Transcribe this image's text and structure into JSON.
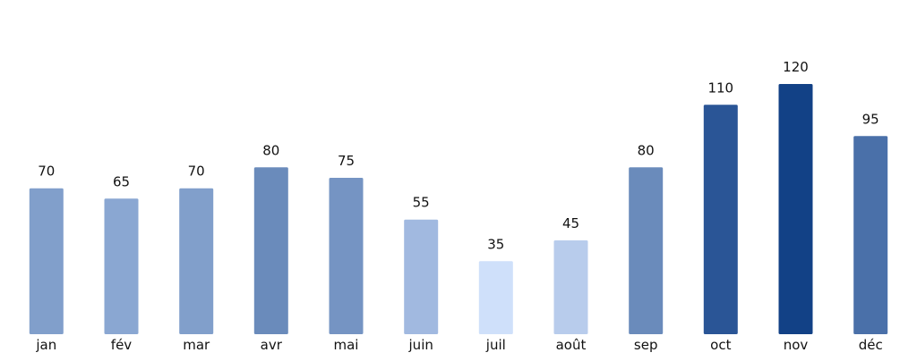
{
  "chart_data": {
    "type": "bar",
    "categories": [
      "jan",
      "fév",
      "mar",
      "avr",
      "mai",
      "juin",
      "juil",
      "août",
      "sep",
      "oct",
      "nov",
      "déc"
    ],
    "values": [
      70,
      65,
      70,
      80,
      75,
      55,
      35,
      45,
      80,
      110,
      120,
      95
    ],
    "title": "",
    "xlabel": "",
    "ylabel": "",
    "ylim": [
      0,
      120
    ],
    "grid": false,
    "legend": "none",
    "data_labels": true,
    "colors": {
      "low": "#cfe0fa",
      "high": "#124186"
    },
    "bar_colors": [
      "#819fcb",
      "#8aa7d2",
      "#819fcb",
      "#6a8bbb",
      "#7594c3",
      "#a1b9e0",
      "#cfe0fa",
      "#b8ccec",
      "#6a8bbb",
      "#2a5596",
      "#124186",
      "#4a70a9"
    ]
  }
}
